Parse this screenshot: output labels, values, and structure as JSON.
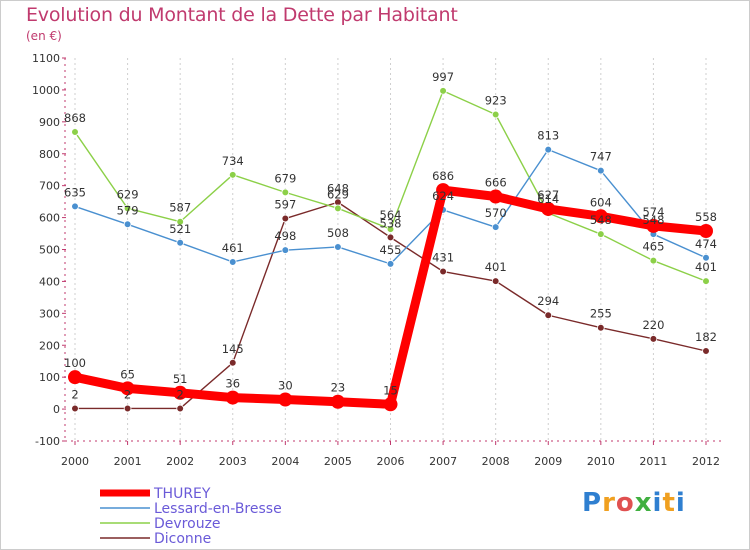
{
  "title": "Evolution du Montant de la Dette par Habitant",
  "subtitle": "(en €)",
  "logo": {
    "letters": [
      "P",
      "r",
      "o",
      "x",
      "i",
      "t",
      "i"
    ],
    "colors": [
      "#2f7fd0",
      "#f0a020",
      "#e05050",
      "#40b040",
      "#2f7fd0",
      "#f0a020",
      "#2f7fd0"
    ]
  },
  "chart_data": {
    "type": "line",
    "title": "Evolution du Montant de la Dette par Habitant",
    "ylabel": "(en €)",
    "x": [
      "2000",
      "2001",
      "2002",
      "2003",
      "2004",
      "2005",
      "2006",
      "2007",
      "2008",
      "2009",
      "2010",
      "2011",
      "2012"
    ],
    "ylim": [
      -100,
      1100
    ],
    "yticks": [
      "-100",
      "0",
      "100",
      "200",
      "300",
      "400",
      "500",
      "600",
      "700",
      "800",
      "900",
      "1000",
      "1100"
    ],
    "grid": "vertical-dashed",
    "legend_position": "bottom-left",
    "series": [
      {
        "name": "THUREY",
        "color": "#ff0000",
        "values": [
          100,
          65,
          51,
          36,
          30,
          23,
          15,
          686,
          666,
          627,
          604,
          574,
          558
        ],
        "labels": [
          "100",
          "65",
          "51",
          "36",
          "30",
          "23",
          "15",
          "686",
          "666",
          "627",
          "604",
          "574",
          "558"
        ]
      },
      {
        "name": "Lessard-en-Bresse",
        "color": "#4a90d0",
        "values": [
          635,
          579,
          521,
          461,
          498,
          508,
          455,
          624,
          570,
          813,
          747,
          548,
          474
        ],
        "labels": [
          "635",
          "579",
          "521",
          "461",
          "498",
          "508",
          "455",
          "624",
          "570",
          "813",
          "747",
          "548",
          "474"
        ]
      },
      {
        "name": "Devrouze",
        "color": "#8cd048",
        "values": [
          868,
          629,
          587,
          734,
          679,
          629,
          564,
          997,
          923,
          614,
          548,
          465,
          401
        ],
        "labels": [
          "868",
          "629",
          "587",
          "734",
          "679",
          "629",
          "564",
          "997",
          "923",
          "614",
          "548",
          "465",
          "401"
        ]
      },
      {
        "name": "Diconne",
        "color": "#7a2a2a",
        "values": [
          2,
          2,
          2,
          145,
          597,
          648,
          538,
          431,
          401,
          294,
          255,
          220,
          182
        ],
        "labels": [
          "2",
          "2",
          "2",
          "145",
          "597",
          "648",
          "538",
          "431",
          "401",
          "294",
          "255",
          "220",
          "182"
        ]
      }
    ]
  }
}
